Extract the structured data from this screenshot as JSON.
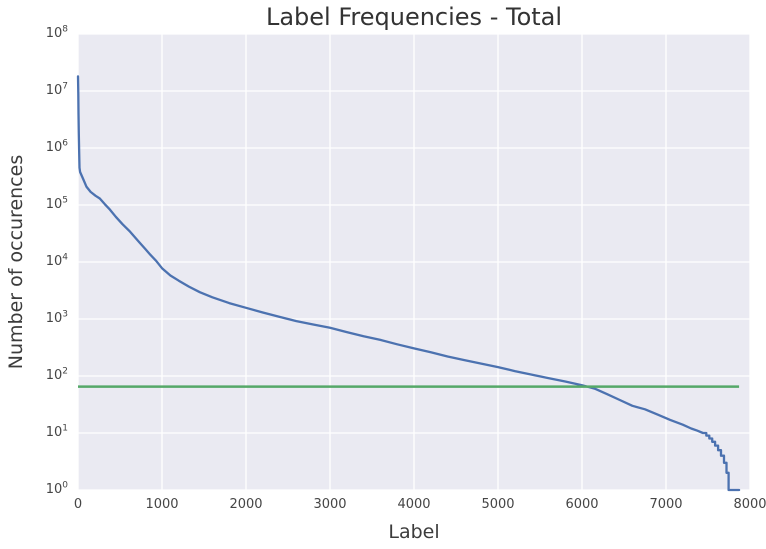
{
  "chart_data": {
    "type": "line",
    "title": "Label Frequencies - Total",
    "xlabel": "Label",
    "ylabel": "Number of occurences",
    "grid": true,
    "legend": false,
    "x_axis": {
      "min": 0,
      "max": 8000,
      "ticks": [
        0,
        1000,
        2000,
        3000,
        4000,
        5000,
        6000,
        7000,
        8000
      ]
    },
    "y_axis": {
      "scale": "log",
      "min_exponent": 0,
      "max_exponent": 8,
      "tick_base": "10",
      "tick_exponents": [
        0,
        1,
        2,
        3,
        4,
        5,
        6,
        7,
        8
      ]
    },
    "series": [
      {
        "name": "label-frequency-curve",
        "color": "#4C72B0",
        "width": 2.3,
        "points": [
          [
            0,
            18000000
          ],
          [
            3,
            9000000
          ],
          [
            6,
            4000000
          ],
          [
            10,
            1800000
          ],
          [
            14,
            800000
          ],
          [
            18,
            450000
          ],
          [
            25,
            380000
          ],
          [
            60,
            290000
          ],
          [
            100,
            210000
          ],
          [
            150,
            170000
          ],
          [
            210,
            145000
          ],
          [
            260,
            130000
          ],
          [
            320,
            103000
          ],
          [
            380,
            83000
          ],
          [
            450,
            62000
          ],
          [
            530,
            46000
          ],
          [
            620,
            34000
          ],
          [
            720,
            23000
          ],
          [
            800,
            17000
          ],
          [
            860,
            13500
          ],
          [
            930,
            10500
          ],
          [
            1000,
            7800
          ],
          [
            1100,
            5800
          ],
          [
            1200,
            4700
          ],
          [
            1320,
            3700
          ],
          [
            1450,
            2950
          ],
          [
            1600,
            2400
          ],
          [
            1800,
            1900
          ],
          [
            2000,
            1570
          ],
          [
            2200,
            1300
          ],
          [
            2400,
            1090
          ],
          [
            2600,
            920
          ],
          [
            2800,
            800
          ],
          [
            3000,
            700
          ],
          [
            3200,
            590
          ],
          [
            3400,
            500
          ],
          [
            3600,
            430
          ],
          [
            3800,
            360
          ],
          [
            4000,
            305
          ],
          [
            4200,
            260
          ],
          [
            4400,
            220
          ],
          [
            4600,
            190
          ],
          [
            4800,
            165
          ],
          [
            5000,
            143
          ],
          [
            5200,
            122
          ],
          [
            5400,
            106
          ],
          [
            5600,
            92
          ],
          [
            5800,
            80
          ],
          [
            6000,
            69
          ],
          [
            6150,
            60
          ],
          [
            6300,
            48
          ],
          [
            6450,
            38
          ],
          [
            6600,
            30
          ],
          [
            6750,
            26
          ],
          [
            6900,
            21
          ],
          [
            7050,
            17
          ],
          [
            7200,
            14
          ],
          [
            7300,
            12
          ],
          [
            7370,
            11
          ],
          [
            7440,
            10
          ],
          [
            7480,
            10
          ],
          [
            7480,
            9
          ],
          [
            7515,
            9
          ],
          [
            7515,
            8
          ],
          [
            7550,
            8
          ],
          [
            7550,
            7
          ],
          [
            7585,
            7
          ],
          [
            7585,
            6
          ],
          [
            7620,
            6
          ],
          [
            7620,
            5
          ],
          [
            7655,
            5
          ],
          [
            7655,
            4
          ],
          [
            7690,
            4
          ],
          [
            7690,
            3
          ],
          [
            7720,
            3
          ],
          [
            7720,
            2
          ],
          [
            7745,
            2
          ],
          [
            7745,
            1
          ],
          [
            7870,
            1
          ]
        ]
      },
      {
        "name": "threshold-line",
        "color": "#55A868",
        "width": 2.5,
        "value": 65,
        "x_start": 0,
        "x_end": 7870
      }
    ]
  },
  "colors": {
    "figure_bg": "#FFFFFF",
    "plot_bg": "#EAEAF2",
    "grid": "#FFFFFF",
    "title_text": "#333333",
    "tick_text": "#454545"
  }
}
